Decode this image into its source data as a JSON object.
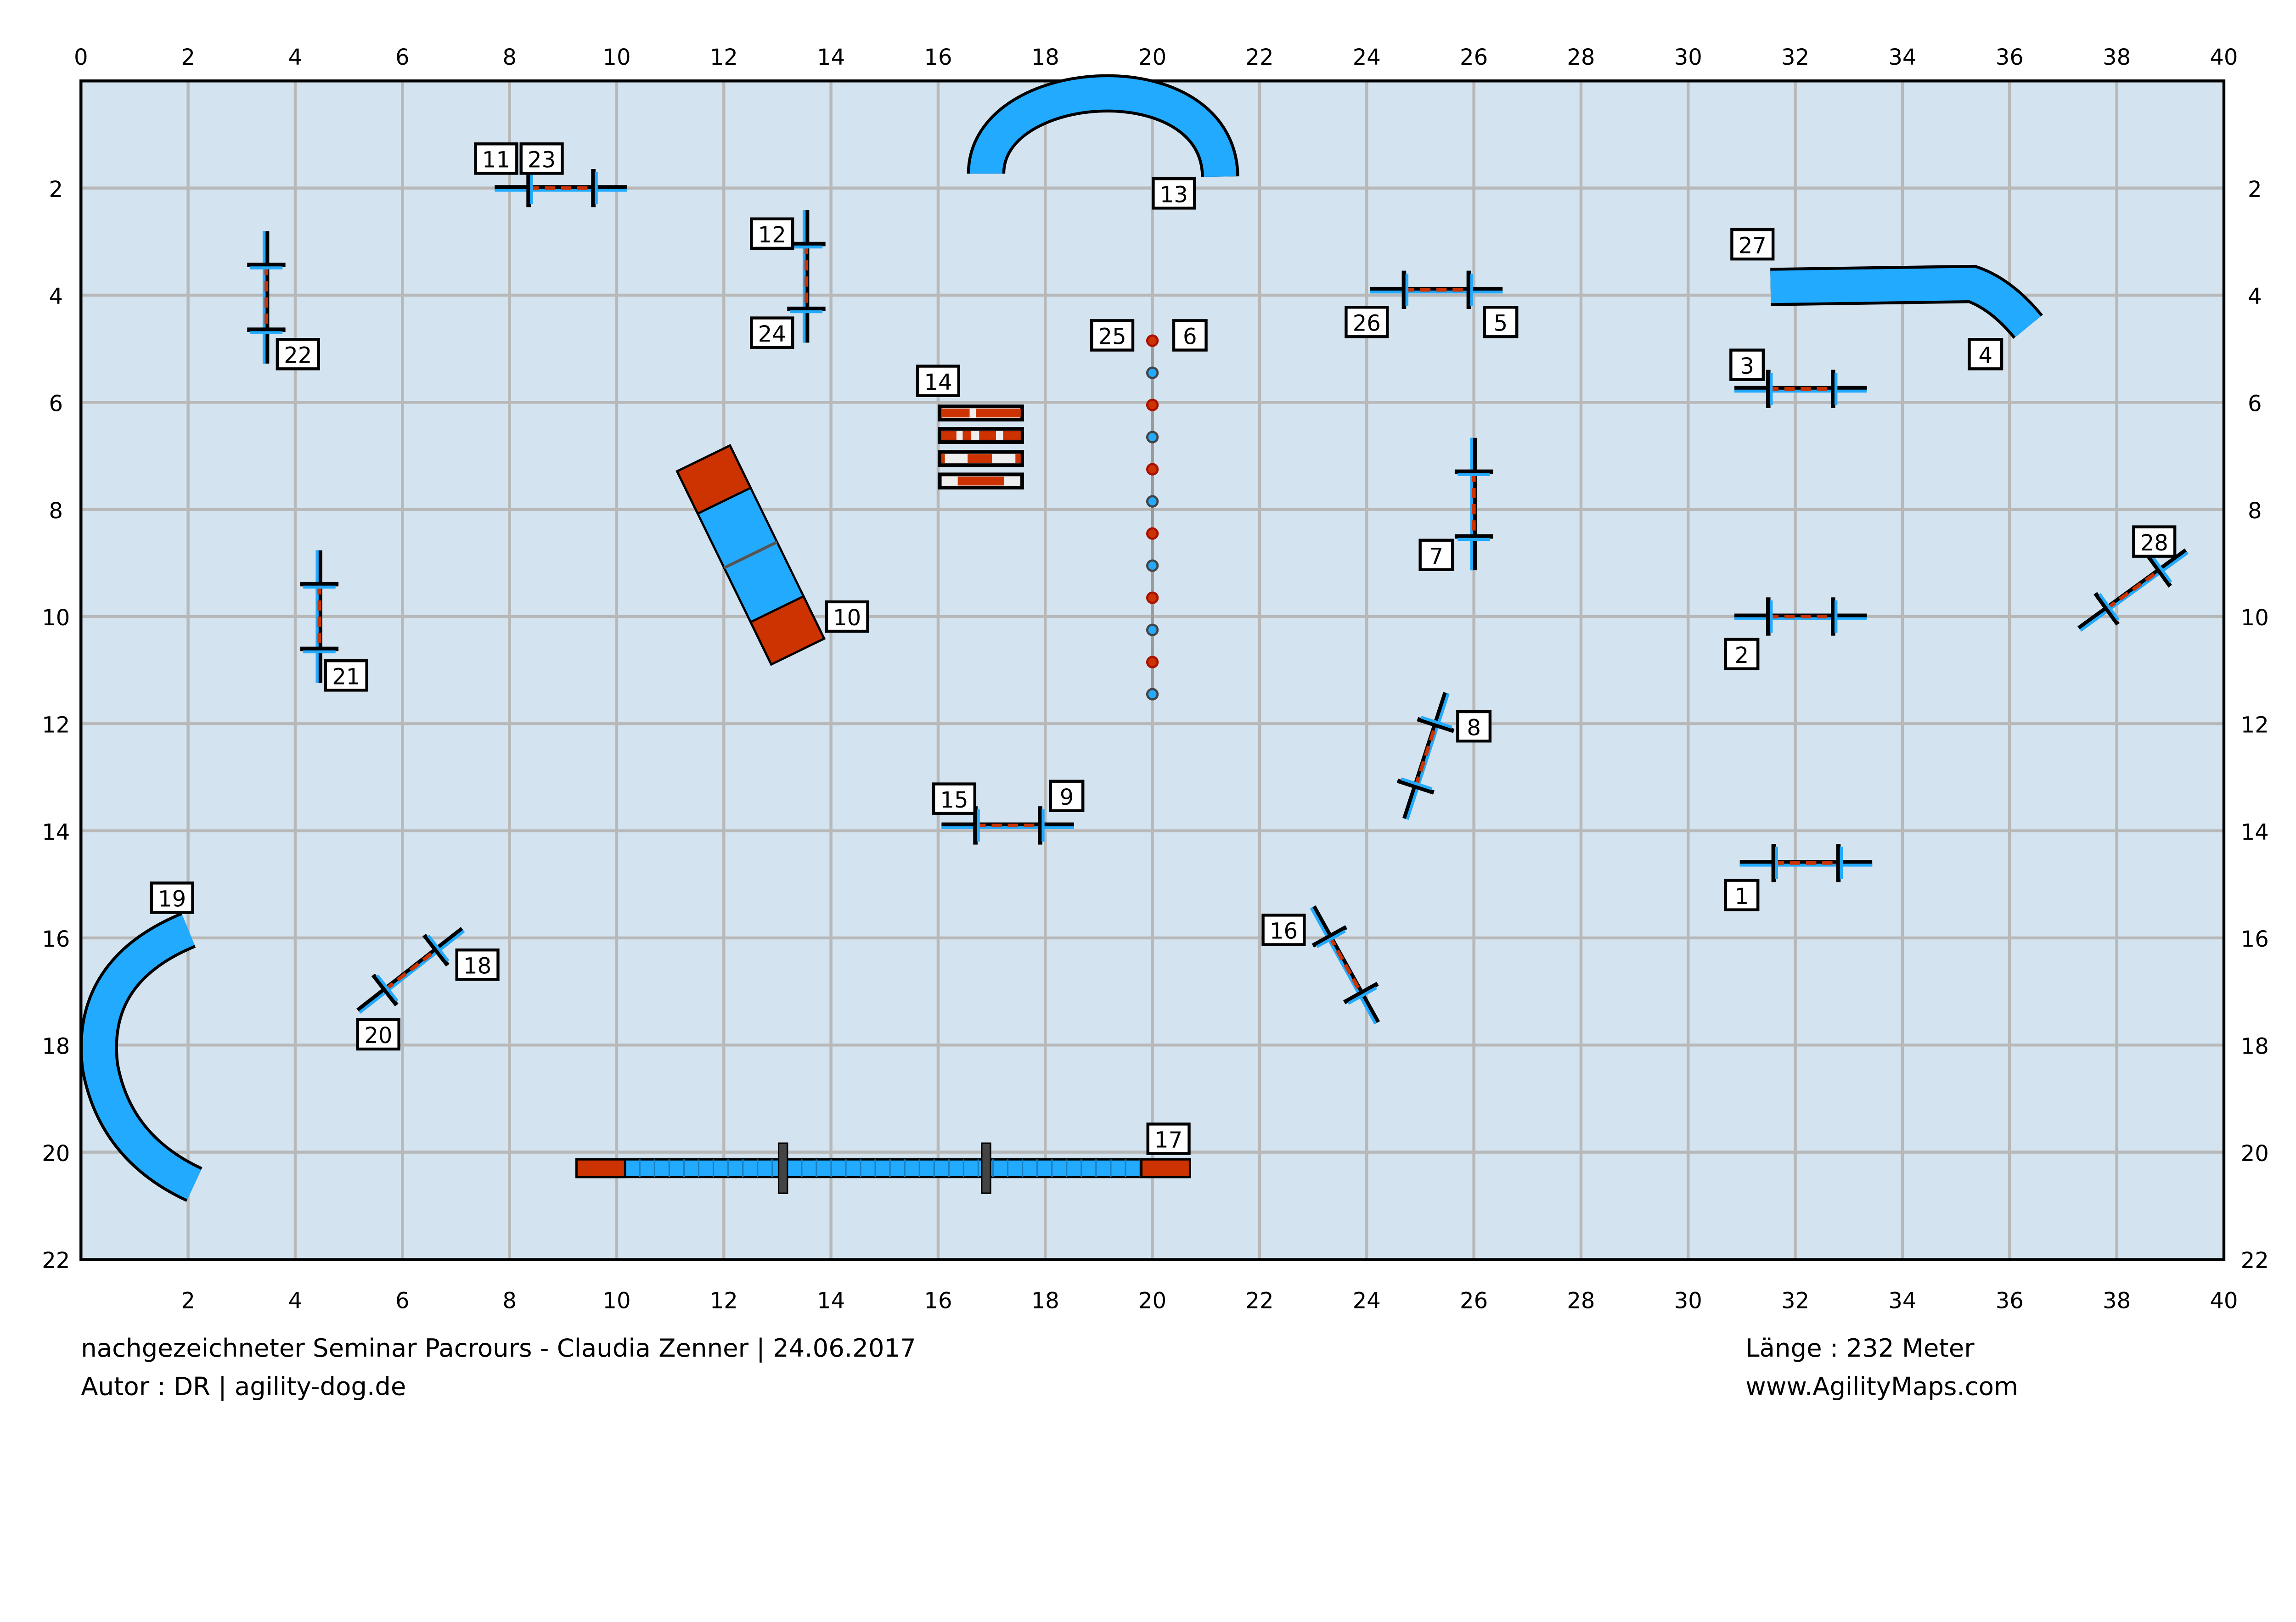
{
  "field": {
    "width_m": 40,
    "height_m": 22,
    "grid_step_m": 2,
    "background": "#d3e3f0",
    "grid_color": "#b8b8b8"
  },
  "axes": {
    "top_ticks": [
      "0",
      "2",
      "4",
      "6",
      "8",
      "10",
      "12",
      "14",
      "16",
      "18",
      "20",
      "22",
      "24",
      "26",
      "28",
      "30",
      "32",
      "34",
      "36",
      "38",
      "40"
    ],
    "bottom_ticks": [
      "2",
      "4",
      "6",
      "8",
      "10",
      "12",
      "14",
      "16",
      "18",
      "20",
      "22",
      "24",
      "26",
      "28",
      "30",
      "32",
      "34",
      "36",
      "38",
      "40"
    ],
    "left_ticks": [
      "2",
      "4",
      "6",
      "8",
      "10",
      "12",
      "14",
      "16",
      "18",
      "20",
      "22"
    ],
    "right_ticks": [
      "2",
      "4",
      "6",
      "8",
      "10",
      "12",
      "14",
      "16",
      "18",
      "20",
      "22"
    ]
  },
  "colors": {
    "red": "#cc3300",
    "blue": "#22aaff",
    "white": "#eeeeee"
  },
  "jumps": [
    {
      "labels": [
        "1"
      ],
      "x": 32.2,
      "y": 14.6,
      "angle": 0
    },
    {
      "labels": [
        "2"
      ],
      "x": 32.1,
      "y": 10.0,
      "angle": 0
    },
    {
      "labels": [
        "3"
      ],
      "x": 32.1,
      "y": 5.75,
      "angle": 0
    },
    {
      "labels": [
        "26",
        "5"
      ],
      "x": 25.3,
      "y": 3.9,
      "angle": 0
    },
    {
      "labels": [
        "7"
      ],
      "x": 26.0,
      "y": 7.9,
      "angle": 90
    },
    {
      "labels": [
        "8"
      ],
      "x": 25.1,
      "y": 12.6,
      "angle": -72
    },
    {
      "labels": [
        "28"
      ],
      "x": 38.3,
      "y": 9.5,
      "angle": -36
    },
    {
      "labels": [
        "15",
        "9"
      ],
      "x": 17.3,
      "y": 13.9,
      "angle": 0
    },
    {
      "labels": [
        "16"
      ],
      "x": 23.6,
      "y": 16.5,
      "angle": 61
    },
    {
      "labels": [
        "18",
        "20"
      ],
      "x": 6.15,
      "y": 16.6,
      "angle": -38
    },
    {
      "labels": [
        "21"
      ],
      "x": 4.45,
      "y": 10.0,
      "angle": 90
    },
    {
      "labels": [
        "22"
      ],
      "x": 3.46,
      "y": 4.04,
      "angle": 90
    },
    {
      "labels": [
        "11",
        "23"
      ],
      "x": 8.96,
      "y": 2.0,
      "angle": 0
    },
    {
      "labels": [
        "12",
        "24"
      ],
      "x": 13.54,
      "y": 3.65,
      "angle": 90
    }
  ],
  "numbers": [
    {
      "text": "1",
      "x": 31.0,
      "y": 15.2
    },
    {
      "text": "2",
      "x": 31.0,
      "y": 10.7
    },
    {
      "text": "3",
      "x": 31.1,
      "y": 5.3
    },
    {
      "text": "26",
      "x": 24.0,
      "y": 4.5
    },
    {
      "text": "5",
      "x": 26.5,
      "y": 4.5
    },
    {
      "text": "7",
      "x": 25.3,
      "y": 8.85
    },
    {
      "text": "8",
      "x": 26.0,
      "y": 12.05
    },
    {
      "text": "28",
      "x": 38.7,
      "y": 8.6
    },
    {
      "text": "15",
      "x": 16.3,
      "y": 13.4
    },
    {
      "text": "9",
      "x": 18.4,
      "y": 13.35
    },
    {
      "text": "16",
      "x": 22.45,
      "y": 15.85
    },
    {
      "text": "18",
      "x": 7.4,
      "y": 16.5
    },
    {
      "text": "20",
      "x": 5.55,
      "y": 17.8
    },
    {
      "text": "21",
      "x": 4.95,
      "y": 11.1
    },
    {
      "text": "22",
      "x": 4.05,
      "y": 5.1
    },
    {
      "text": "11",
      "x": 7.75,
      "y": 1.45
    },
    {
      "text": "23",
      "x": 8.6,
      "y": 1.45
    },
    {
      "text": "12",
      "x": 12.9,
      "y": 2.85
    },
    {
      "text": "24",
      "x": 12.9,
      "y": 4.7
    },
    {
      "text": "13",
      "x": 20.4,
      "y": 2.1
    },
    {
      "text": "27",
      "x": 31.2,
      "y": 3.05
    },
    {
      "text": "4",
      "x": 35.55,
      "y": 5.1
    },
    {
      "text": "19",
      "x": 1.7,
      "y": 15.25
    },
    {
      "text": "17",
      "x": 20.3,
      "y": 19.75
    },
    {
      "text": "10",
      "x": 14.3,
      "y": 10.0
    },
    {
      "text": "14",
      "x": 16.0,
      "y": 5.6
    },
    {
      "text": "25",
      "x": 19.25,
      "y": 4.75
    },
    {
      "text": "6",
      "x": 20.7,
      "y": 4.75
    }
  ],
  "weave": {
    "labels": [
      "25",
      "6"
    ],
    "x": 20.0,
    "y_start": 4.85,
    "y_end": 11.45,
    "poles": 12
  },
  "dogwalk": {
    "label": "17",
    "x_start": 9.25,
    "x_end": 20.7,
    "y": 20.3
  },
  "aframe": {
    "label": "10",
    "x": 12.5,
    "y": 8.85,
    "angle": -26
  },
  "wall": {
    "label": "14",
    "x": 16.8,
    "y_rows": [
      6.2,
      6.62,
      7.05,
      7.47
    ]
  },
  "footer": {
    "left_line1": "nachgezeichneter Seminar Pacrours - Claudia Zenner  |  24.06.2017",
    "left_line2": "Autor : DR  |  agility-dog.de",
    "right_line1": "Länge : 232 Meter",
    "right_line2": "www.AgilityMaps.com"
  }
}
